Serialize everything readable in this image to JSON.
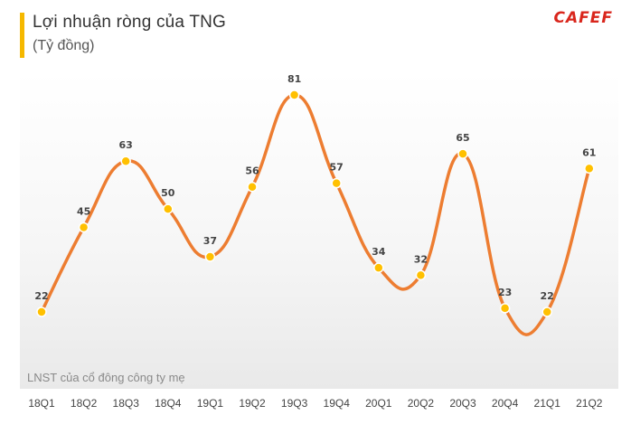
{
  "header": {
    "title": "Lợi nhuận  ròng của TNG",
    "subtitle": "(Tỷ đồng)",
    "logo": "CAFEF"
  },
  "note": "LNST của cổ đông công ty mẹ",
  "colors": {
    "line": "#ed7d31",
    "point": "#ffc000",
    "accent": "#f5b800",
    "logo": "#d9261c"
  },
  "chart_data": {
    "type": "line",
    "categories": [
      "18Q1",
      "18Q2",
      "18Q3",
      "18Q4",
      "19Q1",
      "19Q2",
      "19Q3",
      "19Q4",
      "20Q1",
      "20Q2",
      "20Q3",
      "20Q4",
      "21Q1",
      "21Q2"
    ],
    "values": [
      22,
      45,
      63,
      50,
      37,
      56,
      81,
      57,
      34,
      32,
      65,
      23,
      22,
      61
    ],
    "title": "Lợi nhuận  ròng của TNG",
    "ylabel": "(Tỷ đồng)",
    "smooth": true,
    "grid": false,
    "data_labels": true
  }
}
